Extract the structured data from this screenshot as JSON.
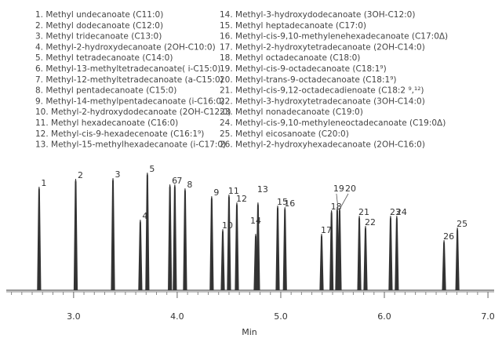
{
  "chart_data": {
    "type": "chromatogram",
    "compounds": [
      "1. Methyl undecanoate (C11:0)",
      "2. Methyl dodecanoate (C12:0)",
      "3. Methyl tridecanoate (C13:0)",
      "4. Methyl-2-hydroxydecanoate (2OH-C10:0)",
      "5. Methyl tetradecanoate (C14:0)",
      "6. Methyl-13-methyltetradecanoate( i-C15:0)",
      "7. Methyl-12-methyltetradecanoate (a-C15:0)",
      "8. Methyl pentadecanoate (C15:0)",
      "9. Methyl-14-methylpentadecanoate (i-C16:0)",
      "10. Methyl-2-hydroxydodecanoate (2OH-C12:0)",
      "11. Methyl hexadecanoate (C16:0)",
      "12. Methyl-cis-9-hexadecenoate (C16:1⁹)",
      "13. Methyl-15-methylhexadecanoate (i-C17:0)",
      "14. Methyl-3-hydroxydodecanoate (3OH-C12:0)",
      "15. Methyl heptadecanoate (C17:0)",
      "16. Methyl-cis-9,10-methylenehexadecanoate (C17:0Δ)",
      "17. Methyl-2-hydroxytetradecanoate (2OH-C14:0)",
      "18. Methyl octadecanoate (C18:0)",
      "19. Methyl-cis-9-octadecanoate (C18:1⁹)",
      "20. Methyl-trans-9-octadecanoate (C18:1⁹)",
      "21. Methyl-cis-9,12-octadecadienoate (C18:2 ⁹,¹²)",
      "22. Methyl-3-hydroxytetradecanoate (3OH-C14:0)",
      "23. Methyl nonadecanoate (C19:0)",
      "24. Methyl-cis-9,10-methyleneoctadecanoate (C19:0Δ)",
      "25. Methyl eicosanoate (C20:0)",
      "26. Methyl-2-hydroxyhexadecanoate (2OH-C16:0)"
    ],
    "peak_labels": [
      "1",
      "2",
      "3",
      "4",
      "5",
      "6",
      "7",
      "8",
      "9",
      "10",
      "11",
      "12",
      "13",
      "14",
      "15",
      "16",
      "17",
      "18",
      "19",
      "20",
      "21",
      "22",
      "23",
      "24",
      "25",
      "26"
    ],
    "x": [
      2.667,
      3.02,
      3.38,
      3.644,
      3.712,
      3.93,
      3.977,
      4.076,
      4.333,
      4.44,
      4.5,
      4.576,
      4.78,
      4.758,
      4.97,
      5.04,
      5.394,
      5.49,
      5.545,
      5.568,
      5.758,
      5.818,
      6.06,
      6.12,
      6.705,
      6.576
    ],
    "values": [
      132,
      142,
      143,
      90,
      150,
      135,
      135,
      130,
      120,
      78,
      122,
      112,
      112,
      72,
      108,
      106,
      72,
      102,
      105,
      105,
      95,
      82,
      95,
      95,
      80,
      64
    ],
    "xlabel": "Min",
    "xlim": [
      2.35,
      7.06
    ],
    "ylim": [
      0,
      160
    ],
    "xticks": [
      {
        "value": 3,
        "label": "3.0"
      },
      {
        "value": 4,
        "label": "4.0"
      },
      {
        "value": 5,
        "label": "5.0"
      },
      {
        "value": 6,
        "label": "6.0"
      },
      {
        "value": 7,
        "label": "7.0"
      }
    ],
    "xminor_ticks": [
      2.4,
      2.5,
      2.6,
      2.7,
      2.8,
      2.9,
      3.1,
      3.2,
      3.3,
      3.4,
      3.5,
      3.6,
      3.7,
      3.8,
      3.9,
      4.1,
      4.2,
      4.3,
      4.4,
      4.5,
      4.6,
      4.7,
      4.8,
      4.9,
      5.1,
      5.2,
      5.3,
      5.4,
      5.5,
      5.6,
      5.7,
      5.8,
      5.9,
      6.1,
      6.2,
      6.3,
      6.4,
      6.5,
      6.6,
      6.7,
      6.8,
      6.9
    ],
    "color": "#333333"
  }
}
